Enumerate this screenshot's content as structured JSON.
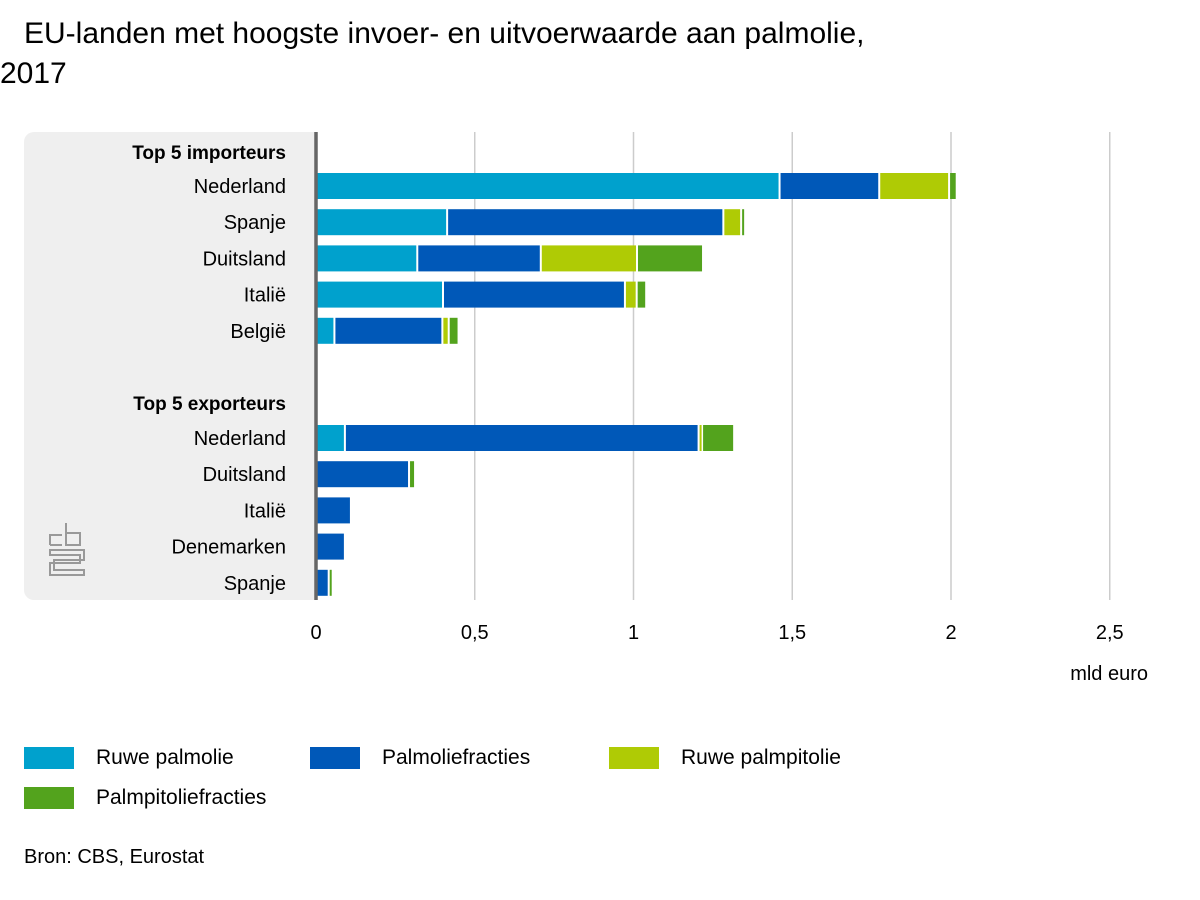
{
  "title": "EU-landen met hoogste invoer- en uitvoerwaarde aan palmolie, 2017",
  "source": "Bron: CBS, Eurostat",
  "logo_text": "cbs",
  "chart_data": {
    "type": "bar",
    "orientation": "horizontal-stacked",
    "title": "EU-landen met hoogste invoer- en uitvoerwaarde aan palmolie, 2017",
    "xlabel": "mld euro",
    "xlim": [
      0,
      2.7
    ],
    "xticks": [
      0,
      0.5,
      1,
      1.5,
      2,
      2.5
    ],
    "xtick_labels": [
      "0",
      "0,5",
      "1",
      "1,5",
      "2",
      "2,5"
    ],
    "grid": true,
    "legend_position": "bottom",
    "series": [
      {
        "name": "Ruwe palmolie",
        "color": "#00a1cd"
      },
      {
        "name": "Palmoliefracties",
        "color": "#0058b8"
      },
      {
        "name": "Ruwe palmpitolie",
        "color": "#afcb05"
      },
      {
        "name": "Palmpitoliefracties",
        "color": "#53a31d"
      }
    ],
    "groups": [
      {
        "label": "Top 5 importeurs",
        "rows": [
          {
            "country": "Nederland",
            "values": [
              1.46,
              0.314,
              0.22,
              0.024
            ]
          },
          {
            "country": "Spanje",
            "values": [
              0.413,
              0.87,
              0.056,
              0.011
            ]
          },
          {
            "country": "Duitsland",
            "values": [
              0.319,
              0.389,
              0.303,
              0.208
            ]
          },
          {
            "country": "Italië",
            "values": [
              0.4,
              0.573,
              0.037,
              0.03
            ]
          },
          {
            "country": "België",
            "values": [
              0.058,
              0.34,
              0.02,
              0.031
            ]
          }
        ]
      },
      {
        "label": "Top 5 exporteurs",
        "rows": [
          {
            "country": "Nederland",
            "values": [
              0.091,
              1.114,
              0.011,
              0.101
            ]
          },
          {
            "country": "Duitsland",
            "values": [
              0,
              0.293,
              0,
              0.019
            ]
          },
          {
            "country": "Italië",
            "values": [
              0,
              0.11,
              0,
              0
            ]
          },
          {
            "country": "Denemarken",
            "values": [
              0,
              0.091,
              0,
              0
            ]
          },
          {
            "country": "Spanje",
            "values": [
              0,
              0.04,
              0,
              0.012
            ]
          }
        ]
      }
    ]
  }
}
